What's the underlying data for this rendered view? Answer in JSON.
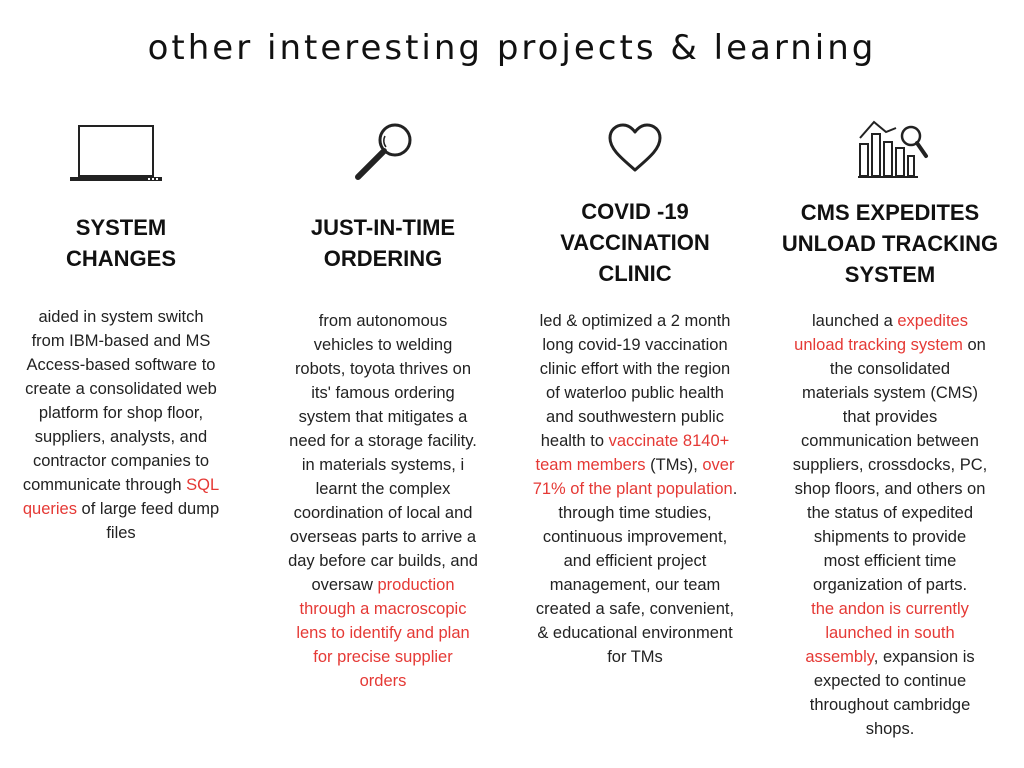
{
  "page_title": "other interesting projects & learning",
  "accent_color": "#e53935",
  "columns": [
    {
      "icon": "laptop-icon",
      "title_lines": [
        "SYSTEM",
        "CHANGES"
      ],
      "body_lines": [
        [
          {
            "t": "aided in system switch"
          }
        ],
        [
          {
            "t": "from IBM-based and MS"
          }
        ],
        [
          {
            "t": "Access-based software to"
          }
        ],
        [
          {
            "t": "create a consolidated web"
          }
        ],
        [
          {
            "t": "platform for shop floor,"
          }
        ],
        [
          {
            "t": "suppliers, analysts, and"
          }
        ],
        [
          {
            "t": "contractor companies to"
          }
        ],
        [
          {
            "t": "communicate through "
          },
          {
            "t": "SQL",
            "hl": true
          }
        ],
        [
          {
            "t": "queries",
            "hl": true
          },
          {
            "t": " of large feed dump"
          }
        ],
        [
          {
            "t": "files"
          }
        ]
      ]
    },
    {
      "icon": "magnifying-glass-icon",
      "title_lines": [
        "JUST-IN-TIME",
        "ORDERING"
      ],
      "body_lines": [
        [
          {
            "t": "from autonomous"
          }
        ],
        [
          {
            "t": "vehicles to welding"
          }
        ],
        [
          {
            "t": "robots, toyota thrives on"
          }
        ],
        [
          {
            "t": "its' famous ordering"
          }
        ],
        [
          {
            "t": "system that mitigates a"
          }
        ],
        [
          {
            "t": "need for a storage facility."
          }
        ],
        [
          {
            "t": "in materials systems, i"
          }
        ],
        [
          {
            "t": "learnt the complex"
          }
        ],
        [
          {
            "t": "coordination of local and"
          }
        ],
        [
          {
            "t": "overseas parts to arrive a"
          }
        ],
        [
          {
            "t": "day before car builds, and"
          }
        ],
        [
          {
            "t": "oversaw "
          },
          {
            "t": "production",
            "hl": true
          }
        ],
        [
          {
            "t": "through a macroscopic",
            "hl": true
          }
        ],
        [
          {
            "t": "lens to identify and plan",
            "hl": true
          }
        ],
        [
          {
            "t": "for precise supplier",
            "hl": true
          }
        ],
        [
          {
            "t": "orders",
            "hl": true
          }
        ]
      ]
    },
    {
      "icon": "heart-icon",
      "title_lines": [
        "COVID -19",
        "VACCINATION",
        "CLINIC"
      ],
      "body_lines": [
        [
          {
            "t": "led & optimized a 2 month"
          }
        ],
        [
          {
            "t": "long covid-19 vaccination"
          }
        ],
        [
          {
            "t": "clinic effort with the region"
          }
        ],
        [
          {
            "t": "of waterloo public health"
          }
        ],
        [
          {
            "t": "and southwestern public"
          }
        ],
        [
          {
            "t": "health to "
          },
          {
            "t": "vaccinate 8140+",
            "hl": true
          }
        ],
        [
          {
            "t": "team members",
            "hl": true
          },
          {
            "t": " (TMs), "
          },
          {
            "t": "over",
            "hl": true
          }
        ],
        [
          {
            "t": "71% of the plant population",
            "hl": true
          },
          {
            "t": "."
          }
        ],
        [
          {
            "t": "through time studies,"
          }
        ],
        [
          {
            "t": "continuous improvement,"
          }
        ],
        [
          {
            "t": "and efficient project"
          }
        ],
        [
          {
            "t": "management, our team"
          }
        ],
        [
          {
            "t": "created a safe, convenient,"
          }
        ],
        [
          {
            "t": "& educational environment"
          }
        ],
        [
          {
            "t": "for TMs"
          }
        ]
      ]
    },
    {
      "icon": "chart-analysis-icon",
      "title_lines": [
        "CMS EXPEDITES",
        "UNLOAD TRACKING",
        "SYSTEM"
      ],
      "body_lines": [
        [
          {
            "t": "launched a "
          },
          {
            "t": "expedites",
            "hl": true
          }
        ],
        [
          {
            "t": "unload tracking system",
            "hl": true
          },
          {
            "t": " on"
          }
        ],
        [
          {
            "t": "the consolidated"
          }
        ],
        [
          {
            "t": "materials system (CMS)"
          }
        ],
        [
          {
            "t": "that provides"
          }
        ],
        [
          {
            "t": "communication between"
          }
        ],
        [
          {
            "t": "suppliers, crossdocks, PC,"
          }
        ],
        [
          {
            "t": "shop floors, and others on"
          }
        ],
        [
          {
            "t": "the status of expedited"
          }
        ],
        [
          {
            "t": "shipments to provide"
          }
        ],
        [
          {
            "t": "most efficient time"
          }
        ],
        [
          {
            "t": "organization of parts."
          }
        ],
        [
          {
            "t": "the andon is currently",
            "hl": true
          }
        ],
        [
          {
            "t": "launched in south",
            "hl": true
          }
        ],
        [
          {
            "t": "assembly",
            "hl": true
          },
          {
            "t": ", expansion is"
          }
        ],
        [
          {
            "t": "expected to continue"
          }
        ],
        [
          {
            "t": "throughout cambridge"
          }
        ],
        [
          {
            "t": "shops."
          }
        ]
      ]
    }
  ]
}
